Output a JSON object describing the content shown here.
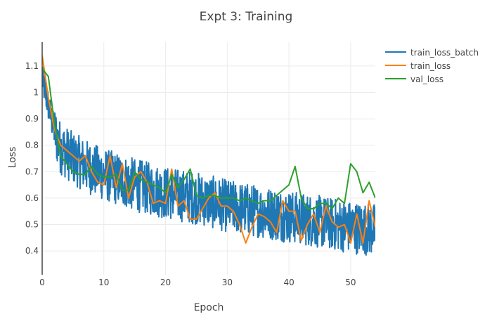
{
  "chart_data": {
    "type": "line",
    "title": "Expt 3: Training",
    "xlabel": "Epoch",
    "ylabel": "Loss",
    "xlim": [
      0,
      54
    ],
    "ylim": [
      0.31,
      1.19
    ],
    "x_ticks": [
      0,
      10,
      20,
      30,
      40,
      50
    ],
    "y_ticks": [
      0.4,
      0.5,
      0.6,
      0.7,
      0.8,
      0.9,
      1,
      1.1
    ],
    "grid": true,
    "legend_position": "top-right",
    "batch_series": {
      "name": "train_loss_batch",
      "color": "#1f77b4",
      "batches_per_epoch": 20,
      "num_epochs": 54,
      "trend_anchors": {
        "x": [
          0,
          1,
          2,
          3,
          5,
          8,
          10,
          15,
          20,
          25,
          30,
          35,
          40,
          45,
          50,
          54
        ],
        "y": [
          1.05,
          0.95,
          0.85,
          0.79,
          0.75,
          0.71,
          0.69,
          0.65,
          0.62,
          0.6,
          0.57,
          0.55,
          0.53,
          0.51,
          0.49,
          0.48
        ]
      },
      "noise_amplitude": 0.1
    },
    "series": [
      {
        "name": "train_loss",
        "color": "#ff7f0e",
        "x": [
          0,
          1,
          2,
          3,
          4,
          5,
          6,
          7,
          8,
          9,
          10,
          11,
          12,
          13,
          14,
          15,
          16,
          17,
          18,
          19,
          20,
          21,
          22,
          23,
          24,
          25,
          26,
          27,
          28,
          29,
          30,
          31,
          32,
          33,
          34,
          35,
          36,
          37,
          38,
          39,
          40,
          41,
          42,
          43,
          44,
          45,
          46,
          47,
          48,
          49,
          50,
          51,
          52,
          53,
          54
        ],
        "y": [
          1.14,
          0.98,
          0.86,
          0.8,
          0.78,
          0.76,
          0.74,
          0.76,
          0.7,
          0.66,
          0.65,
          0.76,
          0.64,
          0.73,
          0.6,
          0.68,
          0.7,
          0.66,
          0.58,
          0.59,
          0.58,
          0.71,
          0.57,
          0.59,
          0.52,
          0.52,
          0.56,
          0.6,
          0.62,
          0.57,
          0.57,
          0.55,
          0.5,
          0.43,
          0.49,
          0.54,
          0.53,
          0.51,
          0.47,
          0.59,
          0.55,
          0.55,
          0.44,
          0.5,
          0.54,
          0.47,
          0.57,
          0.51,
          0.49,
          0.5,
          0.43,
          0.54,
          0.43,
          0.59,
          0.49
        ]
      },
      {
        "name": "val_loss",
        "color": "#2ca02c",
        "x": [
          0,
          1,
          2,
          3,
          4,
          5,
          6,
          7,
          8,
          9,
          10,
          11,
          12,
          13,
          14,
          15,
          16,
          17,
          18,
          19,
          20,
          21,
          22,
          23,
          24,
          25,
          26,
          27,
          28,
          29,
          30,
          31,
          32,
          33,
          34,
          35,
          36,
          37,
          38,
          39,
          40,
          41,
          42,
          43,
          44,
          45,
          46,
          47,
          48,
          49,
          50,
          51,
          52,
          53,
          54
        ],
        "y": [
          1.09,
          1.06,
          0.88,
          0.76,
          0.73,
          0.7,
          0.69,
          0.69,
          0.72,
          0.69,
          0.68,
          0.68,
          0.69,
          0.63,
          0.63,
          0.7,
          0.67,
          0.66,
          0.65,
          0.64,
          0.62,
          0.69,
          0.64,
          0.67,
          0.71,
          0.61,
          0.6,
          0.61,
          0.61,
          0.6,
          0.6,
          0.6,
          0.59,
          0.6,
          0.59,
          0.58,
          0.59,
          0.59,
          0.61,
          0.63,
          0.65,
          0.72,
          0.6,
          0.56,
          0.56,
          0.58,
          0.58,
          0.56,
          0.6,
          0.58,
          0.73,
          0.7,
          0.62,
          0.66,
          0.6
        ]
      }
    ]
  }
}
